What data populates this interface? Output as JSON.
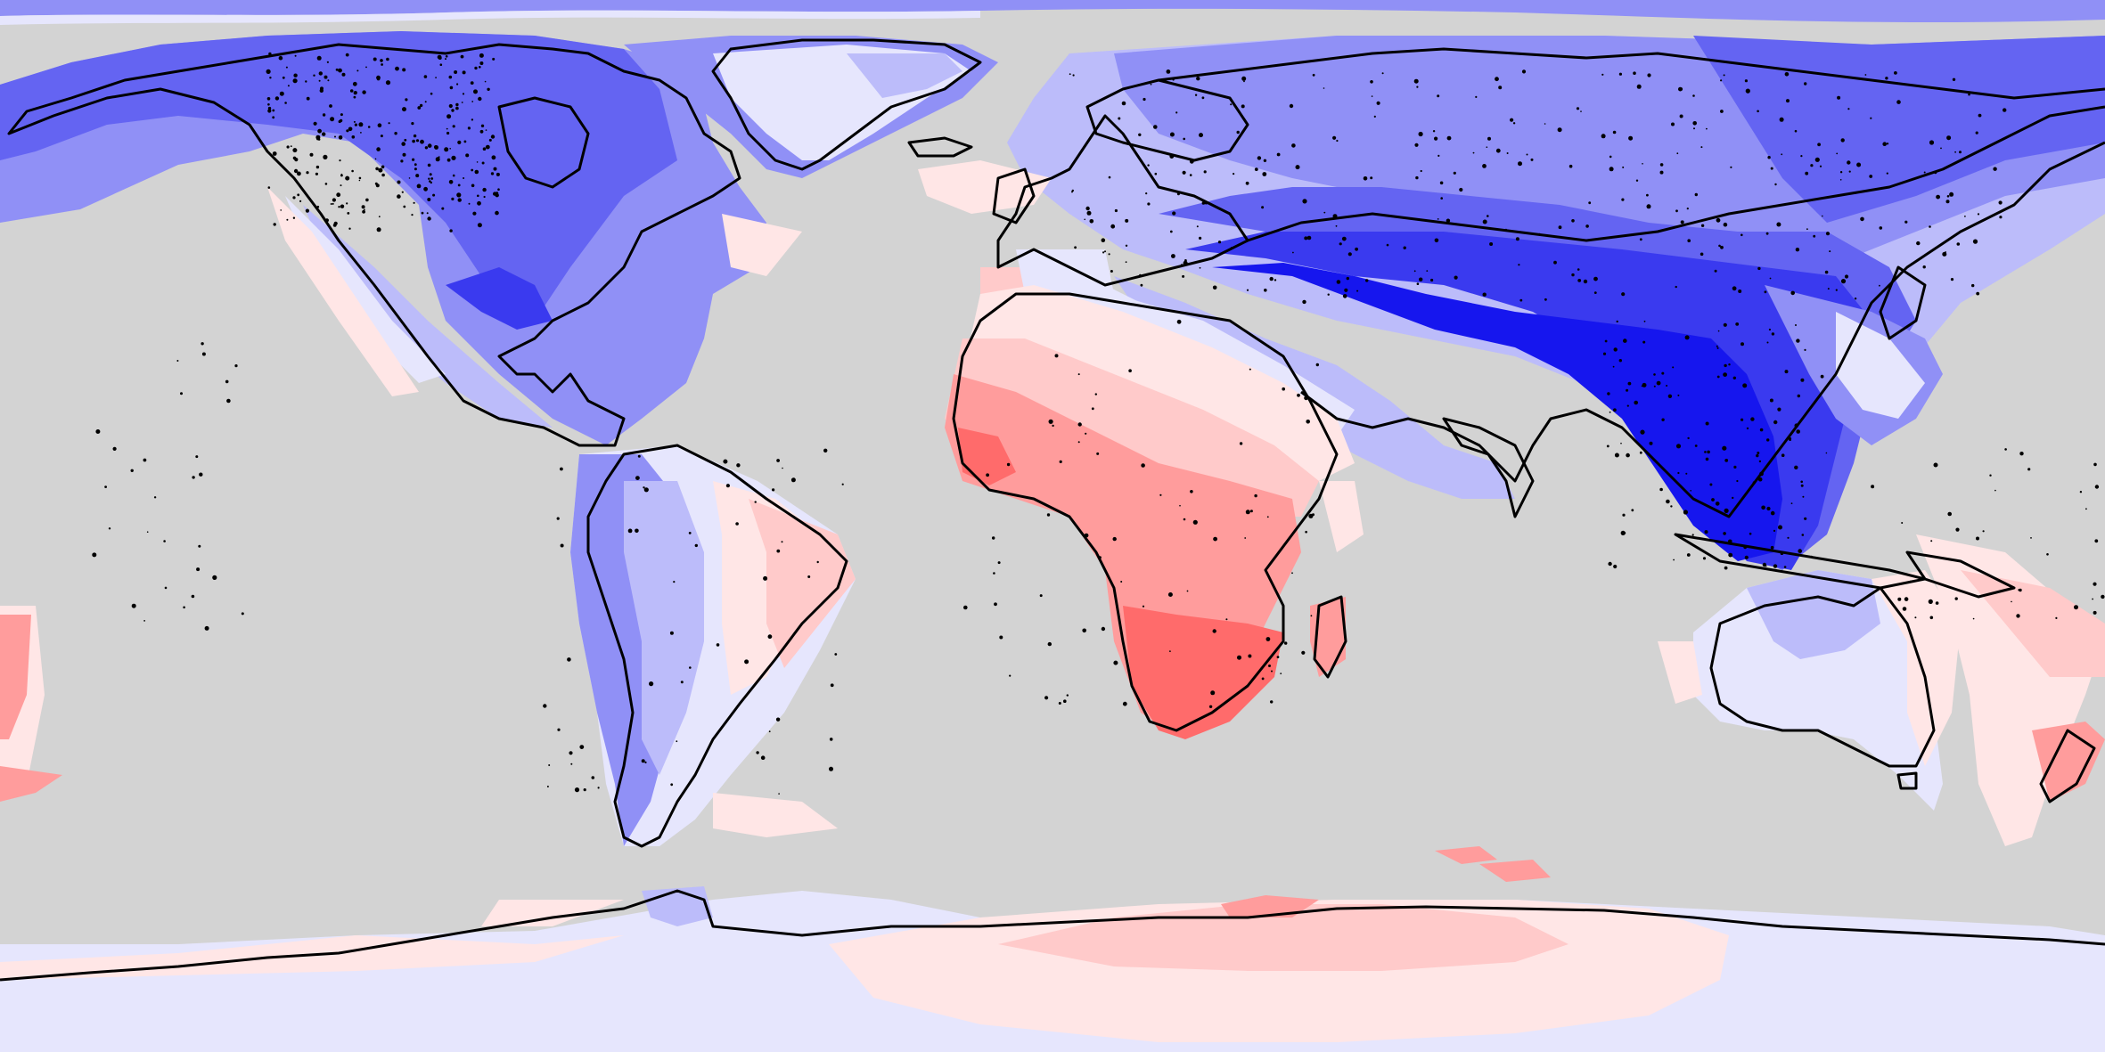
{
  "map": {
    "projection": "equirectangular",
    "center_longitude": 0,
    "ocean_color": "#d3d3d3",
    "coastline_color": "#000000",
    "palette": {
      "blue_6": "#1616ee",
      "blue_5": "#3a3aef",
      "blue_4": "#6464f2",
      "blue_3": "#9090f6",
      "blue_2": "#bcbcfa",
      "blue_1": "#e6e6fd",
      "red_1": "#ffe6e6",
      "red_2": "#ffcaca",
      "red_3": "#ff9c9c",
      "red_4": "#ff6b6b"
    },
    "anomaly_regions": [
      {
        "name": "africa-south",
        "level": "red_4"
      },
      {
        "name": "africa-central",
        "level": "red_3"
      },
      {
        "name": "sahara",
        "level": "red_2"
      },
      {
        "name": "east-asia",
        "level": "blue_6"
      },
      {
        "name": "central-asia",
        "level": "blue_5"
      },
      {
        "name": "siberia",
        "level": "blue_4"
      },
      {
        "name": "north-america",
        "level": "blue_3"
      },
      {
        "name": "south-america-west",
        "level": "blue_3"
      },
      {
        "name": "brazil-east",
        "level": "red_2"
      },
      {
        "name": "australia",
        "level": "blue_1"
      },
      {
        "name": "antarctica",
        "level": "blue_1"
      },
      {
        "name": "antarctica-east-warm",
        "level": "red_2"
      }
    ]
  }
}
